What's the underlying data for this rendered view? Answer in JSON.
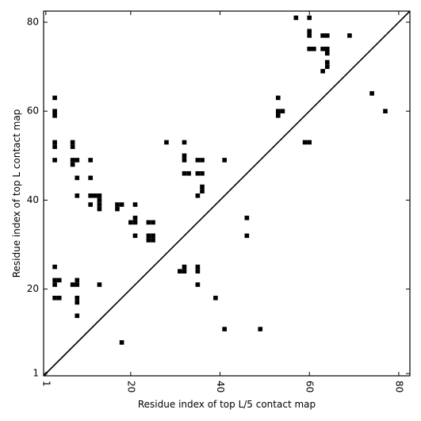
{
  "chart_data": {
    "type": "heatmap",
    "xlabel": "Residue index of top L/5 contact map",
    "ylabel": "Residue index of top L contact map",
    "xlim": [
      0.5,
      82.5
    ],
    "ylim": [
      0.5,
      82.5
    ],
    "xticks": [
      1,
      20,
      40,
      60,
      80
    ],
    "yticks": [
      1,
      20,
      40,
      60,
      80
    ],
    "diagonal": true,
    "grid": false,
    "cell_color": "#000000",
    "cells": [
      [
        3,
        63
      ],
      [
        3,
        60
      ],
      [
        3,
        59
      ],
      [
        3,
        53
      ],
      [
        3,
        52
      ],
      [
        3,
        49
      ],
      [
        7,
        53
      ],
      [
        7,
        52
      ],
      [
        7,
        49
      ],
      [
        7,
        48
      ],
      [
        8,
        49
      ],
      [
        8,
        45
      ],
      [
        8,
        41
      ],
      [
        11,
        49
      ],
      [
        11,
        45
      ],
      [
        11,
        41
      ],
      [
        11,
        39
      ],
      [
        12,
        41
      ],
      [
        13,
        41
      ],
      [
        13,
        40
      ],
      [
        13,
        39
      ],
      [
        13,
        38
      ],
      [
        17,
        39
      ],
      [
        17,
        38
      ],
      [
        18,
        39
      ],
      [
        21,
        39
      ],
      [
        21,
        36
      ],
      [
        20,
        35
      ],
      [
        21,
        35
      ],
      [
        21,
        32
      ],
      [
        24,
        35
      ],
      [
        25,
        35
      ],
      [
        24,
        32
      ],
      [
        25,
        32
      ],
      [
        24,
        31
      ],
      [
        25,
        31
      ],
      [
        28,
        53
      ],
      [
        32,
        53
      ],
      [
        32,
        50
      ],
      [
        32,
        49
      ],
      [
        32,
        46
      ],
      [
        33,
        46
      ],
      [
        35,
        49
      ],
      [
        36,
        49
      ],
      [
        35,
        46
      ],
      [
        36,
        46
      ],
      [
        35,
        41
      ],
      [
        36,
        43
      ],
      [
        36,
        42
      ],
      [
        41,
        49
      ],
      [
        57,
        81
      ],
      [
        60,
        81
      ],
      [
        60,
        78
      ],
      [
        60,
        77
      ],
      [
        63,
        77
      ],
      [
        64,
        77
      ],
      [
        69,
        77
      ],
      [
        60,
        74
      ],
      [
        61,
        74
      ],
      [
        63,
        74
      ],
      [
        64,
        74
      ],
      [
        64,
        73
      ],
      [
        64,
        71
      ],
      [
        64,
        70
      ],
      [
        63,
        69
      ],
      [
        53,
        63
      ],
      [
        53,
        60
      ],
      [
        54,
        60
      ],
      [
        53,
        59
      ],
      [
        59,
        53
      ],
      [
        60,
        53
      ],
      [
        74,
        64
      ],
      [
        77,
        60
      ],
      [
        3,
        25
      ],
      [
        3,
        22
      ],
      [
        4,
        22
      ],
      [
        3,
        21
      ],
      [
        7,
        21
      ],
      [
        8,
        22
      ],
      [
        8,
        21
      ],
      [
        3,
        18
      ],
      [
        4,
        18
      ],
      [
        8,
        18
      ],
      [
        8,
        17
      ],
      [
        8,
        14
      ],
      [
        13,
        21
      ],
      [
        18,
        8
      ],
      [
        31,
        24
      ],
      [
        32,
        25
      ],
      [
        32,
        24
      ],
      [
        35,
        25
      ],
      [
        35,
        24
      ],
      [
        35,
        21
      ],
      [
        39,
        18
      ],
      [
        41,
        11
      ],
      [
        49,
        11
      ],
      [
        46,
        36
      ],
      [
        46,
        32
      ]
    ]
  }
}
